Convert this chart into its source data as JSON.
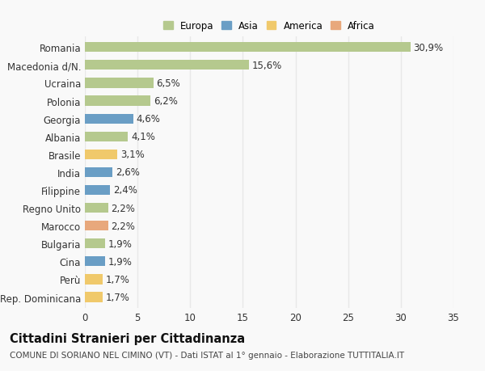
{
  "countries": [
    "Romania",
    "Macedonia d/N.",
    "Ucraina",
    "Polonia",
    "Georgia",
    "Albania",
    "Brasile",
    "India",
    "Filippine",
    "Regno Unito",
    "Marocco",
    "Bulgaria",
    "Cina",
    "Perù",
    "Rep. Dominicana"
  ],
  "values": [
    30.9,
    15.6,
    6.5,
    6.2,
    4.6,
    4.1,
    3.1,
    2.6,
    2.4,
    2.2,
    2.2,
    1.9,
    1.9,
    1.7,
    1.7
  ],
  "labels": [
    "30,9%",
    "15,6%",
    "6,5%",
    "6,2%",
    "4,6%",
    "4,1%",
    "3,1%",
    "2,6%",
    "2,4%",
    "2,2%",
    "2,2%",
    "1,9%",
    "1,9%",
    "1,7%",
    "1,7%"
  ],
  "continents": [
    "Europa",
    "Europa",
    "Europa",
    "Europa",
    "Asia",
    "Europa",
    "America",
    "Asia",
    "Asia",
    "Europa",
    "Africa",
    "Europa",
    "Asia",
    "America",
    "America"
  ],
  "continent_colors": {
    "Europa": "#b5c98e",
    "Asia": "#6a9ec5",
    "America": "#f0c96b",
    "Africa": "#e8a87c"
  },
  "legend_order": [
    "Europa",
    "Asia",
    "America",
    "Africa"
  ],
  "xlim": [
    0,
    35
  ],
  "xticks": [
    0,
    5,
    10,
    15,
    20,
    25,
    30,
    35
  ],
  "title": "Cittadini Stranieri per Cittadinanza",
  "subtitle": "COMUNE DI SORIANO NEL CIMINO (VT) - Dati ISTAT al 1° gennaio - Elaborazione TUTTITALIA.IT",
  "bg_color": "#f9f9f9",
  "grid_color": "#e8e8e8",
  "bar_height": 0.55,
  "label_fontsize": 8.5,
  "tick_fontsize": 8.5,
  "title_fontsize": 10.5,
  "subtitle_fontsize": 7.5
}
